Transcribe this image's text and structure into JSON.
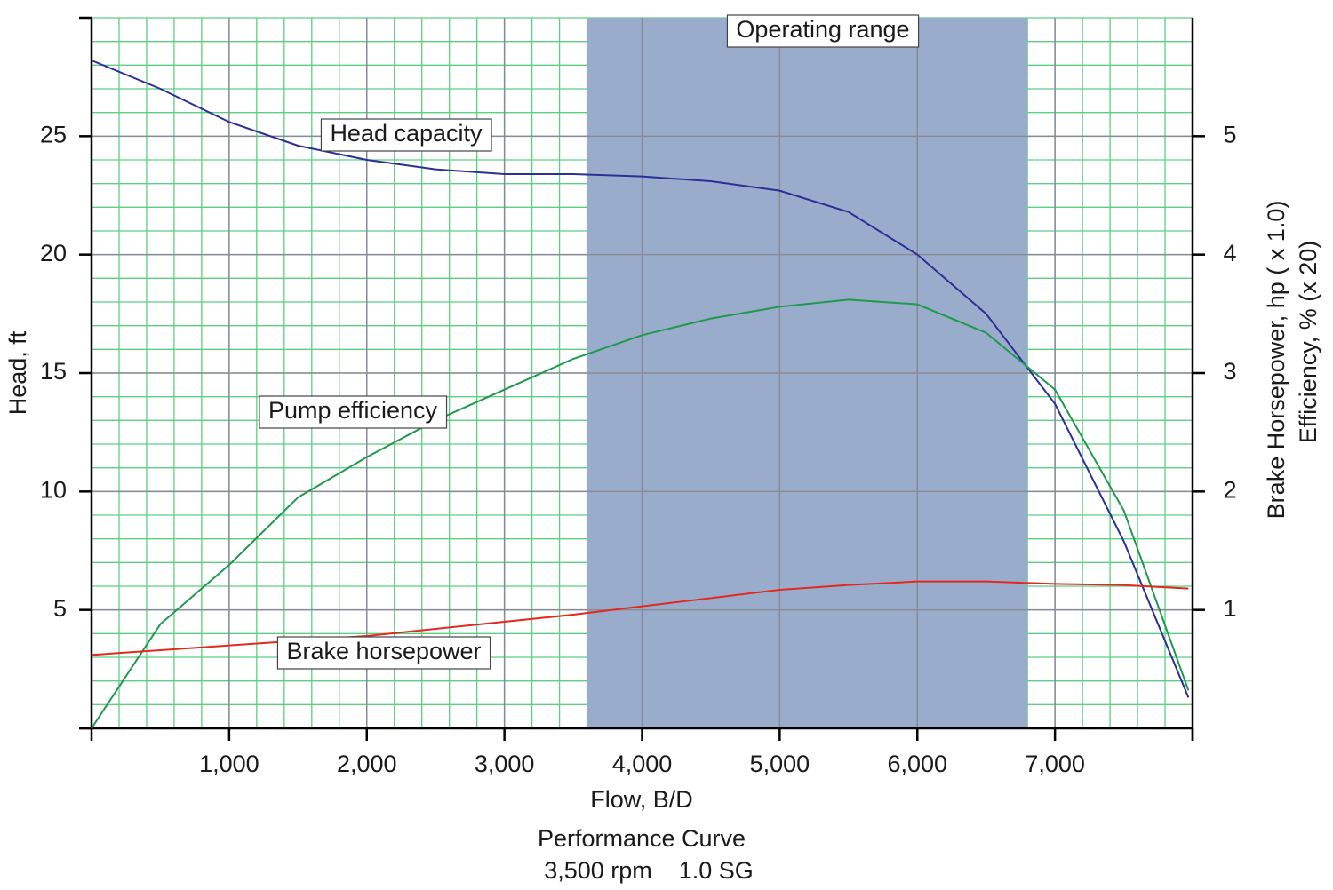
{
  "chart_data": {
    "type": "line",
    "title": "Performance Curve",
    "subtitle": "3,500 rpm    1.0 SG",
    "x_label": "Flow, B/D",
    "y_label": "Head, ft",
    "y2_label": [
      "Brake Horsepower, hp ( x 1.0)",
      "Efficiency, % (x 20)"
    ],
    "xlim": [
      0,
      8000
    ],
    "xticks": [
      {
        "value": 1000,
        "label": "1,000"
      },
      {
        "value": 2000,
        "label": "2,000"
      },
      {
        "value": 3000,
        "label": "3,000"
      },
      {
        "value": 4000,
        "label": "4,000"
      },
      {
        "value": 5000,
        "label": "5,000"
      },
      {
        "value": 6000,
        "label": "6,000"
      },
      {
        "value": 7000,
        "label": "7,000"
      }
    ],
    "ylim": [
      0,
      30
    ],
    "yticks": [
      5,
      10,
      15,
      20,
      25
    ],
    "y2lim": [
      0,
      6
    ],
    "y2ticks": [
      1,
      2,
      3,
      4,
      5
    ],
    "grid": true,
    "minor_grid": {
      "x": 200,
      "y": 1,
      "color": "#5ccf80"
    },
    "shaded_range": {
      "label": "Operating range",
      "x": [
        3600,
        6800
      ],
      "color": "#9aaccc"
    },
    "x": [
      0,
      500,
      1000,
      1500,
      2000,
      2500,
      3000,
      3500,
      4000,
      4500,
      5000,
      5500,
      6000,
      6500,
      7000,
      7500,
      7970
    ],
    "series": [
      {
        "name": "Head capacity",
        "color": "#2c2f96",
        "axis": "y",
        "values": [
          28.2,
          27.0,
          25.6,
          24.6,
          24.0,
          23.6,
          23.4,
          23.4,
          23.3,
          23.1,
          22.7,
          21.8,
          20.0,
          17.5,
          13.7,
          7.9,
          1.3
        ]
      },
      {
        "name": "Pump efficiency",
        "color": "#1f9a4c",
        "axis": "y2",
        "values": [
          0,
          0.88,
          1.38,
          1.95,
          2.29,
          2.6,
          2.86,
          3.12,
          3.32,
          3.46,
          3.56,
          3.62,
          3.58,
          3.34,
          2.86,
          1.84,
          0.32
        ]
      },
      {
        "name": "Brake horsepower",
        "color": "#e2291e",
        "axis": "y2",
        "values": [
          0.62,
          0.66,
          0.7,
          0.74,
          0.78,
          0.84,
          0.9,
          0.96,
          1.03,
          1.1,
          1.17,
          1.21,
          1.24,
          1.24,
          1.22,
          1.21,
          1.18
        ]
      }
    ]
  }
}
